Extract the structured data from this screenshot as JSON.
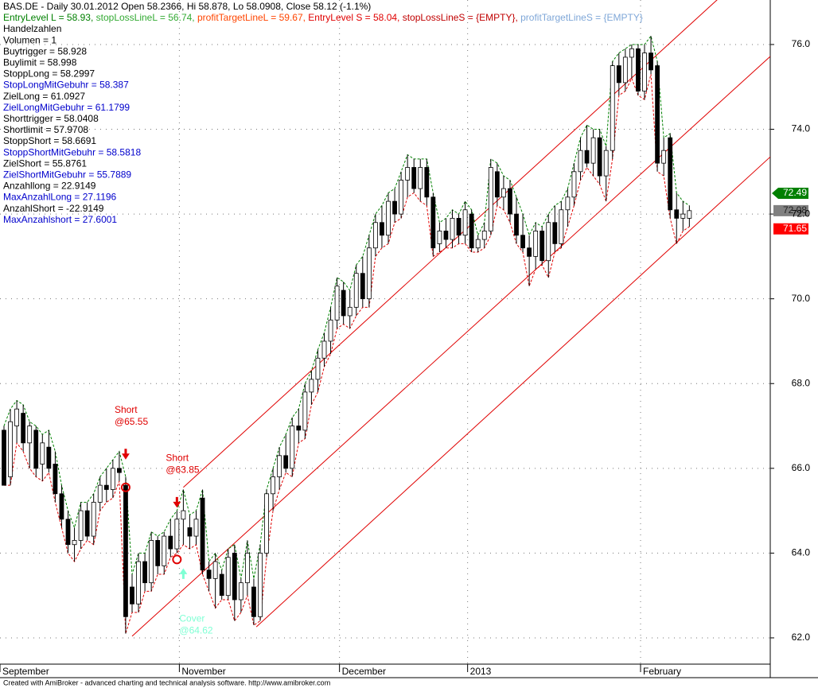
{
  "chart_data": {
    "type": "candlestick",
    "title": "BAS.DE - Daily 30.01.2012 Open 58.2366, Hi 58.878, Lo 58.0908, Close 58.12 (-1.1%)",
    "legend_segments": [
      {
        "text": "EntryLevel L = 58.93, ",
        "color": "#008000"
      },
      {
        "text": "stopLossLineL = 56.74, ",
        "color": "#33aa33"
      },
      {
        "text": "profitTargetLineL = 59.67, ",
        "color": "#ff4500"
      },
      {
        "text": "EntryLevel S = 58.04, ",
        "color": "#e00000"
      },
      {
        "text": "stopLossLineS = {EMPTY}, ",
        "color": "#c00000"
      },
      {
        "text": "profitTargetLineS = {EMPTY}",
        "color": "#7fa7d8"
      }
    ],
    "info_lines": [
      {
        "text": "Handelzahlen",
        "color": "#000000"
      },
      {
        "text": "Volumen = 1",
        "color": "#000000"
      },
      {
        "text": "Buytrigger = 58.928",
        "color": "#000000"
      },
      {
        "text": "Buylimit = 58.998",
        "color": "#000000"
      },
      {
        "text": "StoppLong = 58.2997",
        "color": "#000000"
      },
      {
        "text": "StopLongMitGebuhr = 58.387",
        "color": "#0000cc"
      },
      {
        "text": "ZielLong = 61.0927",
        "color": "#000000"
      },
      {
        "text": "ZielLongMitGebuhr = 61.1799",
        "color": "#0000cc"
      },
      {
        "text": "Shorttrigger = 58.0408",
        "color": "#000000"
      },
      {
        "text": "Shortlimit = 57.9708",
        "color": "#000000"
      },
      {
        "text": "StoppShort = 58.6691",
        "color": "#000000"
      },
      {
        "text": "StoppShortMitGebuhr = 58.5818",
        "color": "#0000cc"
      },
      {
        "text": "ZielShort = 55.8761",
        "color": "#000000"
      },
      {
        "text": "ZielShortMitGebuhr = 55.7889",
        "color": "#0000cc"
      },
      {
        "text": "Anzahllong = 22.9149",
        "color": "#000000"
      },
      {
        "text": "MaxAnzahlLong = 27.1196",
        "color": "#0000cc"
      },
      {
        "text": "AnzahlShort = -22.9149",
        "color": "#000000"
      },
      {
        "text": "MaxAnzahlshort = 27.6001",
        "color": "#0000cc"
      }
    ],
    "categories": [
      "September",
      null,
      null,
      null,
      null,
      null,
      null,
      null,
      null,
      null,
      null,
      null,
      null,
      null,
      null,
      null,
      null,
      null,
      null,
      null,
      null,
      null,
      null,
      null,
      null,
      null,
      null,
      null,
      "November",
      null,
      null,
      null,
      null,
      null,
      null,
      null,
      null,
      null,
      null,
      null,
      null,
      null,
      null,
      null,
      null,
      null,
      null,
      null,
      null,
      null,
      null,
      null,
      null,
      "December",
      null,
      null,
      null,
      null,
      null,
      null,
      null,
      null,
      null,
      null,
      null,
      null,
      null,
      null,
      null,
      null,
      null,
      null,
      null,
      "2013",
      null,
      null,
      null,
      null,
      null,
      null,
      null,
      null,
      null,
      null,
      null,
      null,
      null,
      null,
      null,
      null,
      null,
      null,
      null,
      null,
      null,
      null,
      null,
      null,
      null,
      null,
      "February",
      null,
      null,
      null,
      null,
      null
    ],
    "candles": [
      [
        66.9,
        67.0,
        65.6,
        65.6
      ],
      [
        65.8,
        67.4,
        65.6,
        67.1
      ],
      [
        67.0,
        67.6,
        66.6,
        67.4
      ],
      [
        67.3,
        67.5,
        66.4,
        66.6
      ],
      [
        66.6,
        67.1,
        66.0,
        67.0
      ],
      [
        66.9,
        67.0,
        65.8,
        66.0
      ],
      [
        66.1,
        66.8,
        65.7,
        66.6
      ],
      [
        66.5,
        66.9,
        65.9,
        66.0
      ],
      [
        66.1,
        66.4,
        65.2,
        65.4
      ],
      [
        65.4,
        65.6,
        64.6,
        64.8
      ],
      [
        64.8,
        65.0,
        64.0,
        64.2
      ],
      [
        64.2,
        64.6,
        63.8,
        64.3
      ],
      [
        64.3,
        65.2,
        64.1,
        65.0
      ],
      [
        65.0,
        65.2,
        64.3,
        64.4
      ],
      [
        64.4,
        65.4,
        64.2,
        65.2
      ],
      [
        65.2,
        65.8,
        65.0,
        65.6
      ],
      [
        65.6,
        66.0,
        65.2,
        65.5
      ],
      [
        65.5,
        66.2,
        65.3,
        66.0
      ],
      [
        66.0,
        66.4,
        65.7,
        65.9
      ],
      [
        65.6,
        65.8,
        62.1,
        62.5
      ],
      [
        63.2,
        63.5,
        62.6,
        62.8
      ],
      [
        62.8,
        64.0,
        62.6,
        63.8
      ],
      [
        63.8,
        64.0,
        63.1,
        63.3
      ],
      [
        63.3,
        64.5,
        63.1,
        64.3
      ],
      [
        64.3,
        64.4,
        63.5,
        63.7
      ],
      [
        63.7,
        64.5,
        63.5,
        64.4
      ],
      [
        64.4,
        64.8,
        63.9,
        64.1
      ],
      [
        64.1,
        65.0,
        64.0,
        64.8
      ],
      [
        64.8,
        65.5,
        64.2,
        65.0
      ],
      [
        64.6,
        64.9,
        64.1,
        64.4
      ],
      [
        64.4,
        65.0,
        64.2,
        64.8
      ],
      [
        65.3,
        65.5,
        63.5,
        63.6
      ],
      [
        63.6,
        63.8,
        63.1,
        63.4
      ],
      [
        63.4,
        64.0,
        62.7,
        63.8
      ],
      [
        63.5,
        63.6,
        62.9,
        63.0
      ],
      [
        63.0,
        64.1,
        62.9,
        63.9
      ],
      [
        64.0,
        64.2,
        62.4,
        62.9
      ],
      [
        62.9,
        63.4,
        62.6,
        63.3
      ],
      [
        63.3,
        64.3,
        63.0,
        64.0
      ],
      [
        63.2,
        63.4,
        62.3,
        62.5
      ],
      [
        62.5,
        64.2,
        62.4,
        64.0
      ],
      [
        64.0,
        65.5,
        63.9,
        65.4
      ],
      [
        65.4,
        66.0,
        65.0,
        65.8
      ],
      [
        65.8,
        66.5,
        65.5,
        66.3
      ],
      [
        66.3,
        66.8,
        65.9,
        66.0
      ],
      [
        66.0,
        67.2,
        65.8,
        67.0
      ],
      [
        67.0,
        67.4,
        66.6,
        66.9
      ],
      [
        66.9,
        68.0,
        66.7,
        67.8
      ],
      [
        67.8,
        68.3,
        67.5,
        68.1
      ],
      [
        68.1,
        68.8,
        67.8,
        68.6
      ],
      [
        68.6,
        69.2,
        68.4,
        69.0
      ],
      [
        69.0,
        69.8,
        68.7,
        69.5
      ],
      [
        69.5,
        70.5,
        69.3,
        70.3
      ],
      [
        70.2,
        70.4,
        69.4,
        69.6
      ],
      [
        69.6,
        70.2,
        69.3,
        69.8
      ],
      [
        69.8,
        70.8,
        69.6,
        70.6
      ],
      [
        70.6,
        71.0,
        69.8,
        70.0
      ],
      [
        70.0,
        71.5,
        69.8,
        71.2
      ],
      [
        71.2,
        72.0,
        71.0,
        71.8
      ],
      [
        71.8,
        72.2,
        71.2,
        71.5
      ],
      [
        71.5,
        72.5,
        71.3,
        72.3
      ],
      [
        72.3,
        72.6,
        71.8,
        72.0
      ],
      [
        72.0,
        73.0,
        71.9,
        72.8
      ],
      [
        72.8,
        73.4,
        72.4,
        73.1
      ],
      [
        73.1,
        73.3,
        72.5,
        72.6
      ],
      [
        72.6,
        73.3,
        72.3,
        73.1
      ],
      [
        73.1,
        73.3,
        72.2,
        72.4
      ],
      [
        72.4,
        72.5,
        71.0,
        71.2
      ],
      [
        71.3,
        71.8,
        71.1,
        71.6
      ],
      [
        71.6,
        71.9,
        71.2,
        71.4
      ],
      [
        71.4,
        72.1,
        71.2,
        71.9
      ],
      [
        71.9,
        72.0,
        71.3,
        71.5
      ],
      [
        71.5,
        72.3,
        71.3,
        72.1
      ],
      [
        72.0,
        72.1,
        71.1,
        71.2
      ],
      [
        71.2,
        71.5,
        71.1,
        71.4
      ],
      [
        71.4,
        71.8,
        71.2,
        71.6
      ],
      [
        71.6,
        73.3,
        71.5,
        73.1
      ],
      [
        73.0,
        73.2,
        72.2,
        72.4
      ],
      [
        72.4,
        72.9,
        72.1,
        72.6
      ],
      [
        72.6,
        72.8,
        71.8,
        72.0
      ],
      [
        72.0,
        72.4,
        71.3,
        71.5
      ],
      [
        71.5,
        72.0,
        71.1,
        71.2
      ],
      [
        71.2,
        71.5,
        70.3,
        71.0
      ],
      [
        71.0,
        71.8,
        70.7,
        71.6
      ],
      [
        71.6,
        71.7,
        70.8,
        70.9
      ],
      [
        70.9,
        72.0,
        70.5,
        71.8
      ],
      [
        71.8,
        72.2,
        71.1,
        71.3
      ],
      [
        71.3,
        72.3,
        71.2,
        72.1
      ],
      [
        72.1,
        72.6,
        71.7,
        72.4
      ],
      [
        72.4,
        73.2,
        72.2,
        73.0
      ],
      [
        73.0,
        73.8,
        72.8,
        73.5
      ],
      [
        73.5,
        74.1,
        73.1,
        73.2
      ],
      [
        73.2,
        74.0,
        72.9,
        73.8
      ],
      [
        73.8,
        74.0,
        72.7,
        72.9
      ],
      [
        72.9,
        73.6,
        72.3,
        73.5
      ],
      [
        73.5,
        75.6,
        73.3,
        75.5
      ],
      [
        75.5,
        75.8,
        74.8,
        75.1
      ],
      [
        75.1,
        75.9,
        74.9,
        75.7
      ],
      [
        75.7,
        76.0,
        75.2,
        75.9
      ],
      [
        75.9,
        76.0,
        74.8,
        74.9
      ],
      [
        74.9,
        76.0,
        74.7,
        75.8
      ],
      [
        75.8,
        76.2,
        75.3,
        75.4
      ],
      [
        75.5,
        75.6,
        73.0,
        73.2
      ],
      [
        73.2,
        73.8,
        72.9,
        73.5
      ],
      [
        73.8,
        73.9,
        71.9,
        72.1
      ],
      [
        72.1,
        72.5,
        71.3,
        71.9
      ],
      [
        71.9,
        72.3,
        71.6,
        72.0
      ],
      [
        71.9,
        72.2,
        71.7,
        72.08
      ]
    ],
    "high_line_color": "#008000",
    "low_line_color": "#e00000",
    "trend_lines": [
      {
        "from": [
          28,
          65.55
        ],
        "to": [
          120,
          78.25
        ]
      },
      {
        "from": [
          20,
          62.04
        ],
        "to": [
          120,
          75.77
        ]
      },
      {
        "from": [
          39.4,
          62.26
        ],
        "to": [
          120,
          73.4
        ]
      }
    ],
    "trend_color": "#e00000",
    "signals": [
      {
        "kind": "short",
        "label": "Short",
        "price_label": "@65.55",
        "index": 19,
        "price": 65.55,
        "color": "#e00000"
      },
      {
        "kind": "short",
        "label": "Short",
        "price_label": "@63.85",
        "index": 27,
        "price": 63.85,
        "color": "#e00000"
      },
      {
        "kind": "cover",
        "label": "Cover",
        "price_label": "@64.62",
        "index": 28,
        "price": 64.62,
        "color": "#7fffd4"
      }
    ],
    "last_labels": [
      {
        "value": 72.49,
        "color": "#008000",
        "text_color": "#ffffff"
      },
      {
        "value": 72.08,
        "color": "#808080",
        "text_color": "#222222"
      },
      {
        "value": 71.65,
        "color": "#ff0000",
        "text_color": "#ffffff"
      }
    ],
    "ylim": [
      61.38,
      77.05
    ],
    "yticks": [
      {
        "value": 62,
        "label": "62.0"
      },
      {
        "value": 64,
        "label": "64.0"
      },
      {
        "value": 66,
        "label": "66.0"
      },
      {
        "value": 68,
        "label": "68.0"
      },
      {
        "value": 70,
        "label": "70.0"
      },
      {
        "value": 72,
        "label": "72.0"
      },
      {
        "value": 74,
        "label": "74.0"
      },
      {
        "value": 76,
        "label": "76.0"
      }
    ],
    "grid": true,
    "footer": "Created with AmiBroker - advanced charting and technical analysis software. http://www.amibroker.com"
  }
}
